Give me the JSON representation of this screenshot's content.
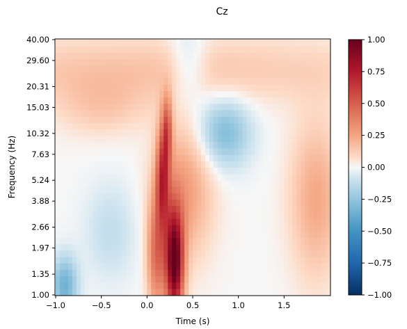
{
  "chart_data": {
    "type": "heatmap",
    "title": "Cz",
    "xlabel": "Time (s)",
    "ylabel": "Frequency (Hz)",
    "x_range": [
      -1.0,
      2.0
    ],
    "x_ticks": [
      -1.0,
      -0.5,
      0.0,
      0.5,
      1.0,
      1.5
    ],
    "x_tick_labels": [
      "−1.0",
      "−0.5",
      "0.0",
      "0.5",
      "1.0",
      "1.5"
    ],
    "y_scale": "log",
    "y_range": [
      1.0,
      40.0
    ],
    "y_ticks": [
      1.0,
      1.35,
      1.97,
      2.66,
      3.88,
      5.24,
      7.63,
      10.32,
      15.03,
      20.31,
      29.6,
      40.0
    ],
    "y_tick_labels": [
      "1.00",
      "1.35",
      "1.97",
      "2.66",
      "3.88",
      "5.24",
      "7.63",
      "10.32",
      "15.03",
      "20.31",
      "29.60",
      "40.00"
    ],
    "colorbar": {
      "colormap": "RdBu_r",
      "vmin": -1.0,
      "vmax": 1.0,
      "ticks": [
        -1.0,
        -0.75,
        -0.5,
        -0.25,
        0.0,
        0.25,
        0.5,
        0.75,
        1.0
      ],
      "tick_labels": [
        "−1.00",
        "−0.75",
        "−0.50",
        "−0.25",
        "0.00",
        "0.25",
        "0.50",
        "0.75",
        "1.00"
      ]
    },
    "features": [
      {
        "t0": 0.3,
        "sigma_t": 0.07,
        "f0": 1.6,
        "sigma_logf": 0.55,
        "amp": 1.0
      },
      {
        "t0": 0.1,
        "sigma_t": 0.07,
        "f0": 1.8,
        "sigma_logf": 0.6,
        "amp": 0.42
      },
      {
        "t0": 0.17,
        "sigma_t": 0.05,
        "f0": 5.5,
        "sigma_logf": 0.5,
        "amp": 0.55
      },
      {
        "t0": 0.22,
        "sigma_t": 0.04,
        "f0": 11.0,
        "sigma_logf": 0.35,
        "amp": 0.42
      },
      {
        "t0": 0.4,
        "sigma_t": 0.22,
        "f0": 4.5,
        "sigma_logf": 0.7,
        "amp": 0.28
      },
      {
        "t0": 1.85,
        "sigma_t": 0.2,
        "f0": 4.0,
        "sigma_logf": 0.8,
        "amp": 0.24
      },
      {
        "t0": 0.0,
        "sigma_t": 2.0,
        "f0": 26.0,
        "sigma_logf": 0.35,
        "amp": 0.15
      },
      {
        "t0": -0.5,
        "sigma_t": 0.35,
        "f0": 15.0,
        "sigma_logf": 0.3,
        "amp": 0.12
      },
      {
        "t0": -0.9,
        "sigma_t": 0.1,
        "f0": 1.15,
        "sigma_logf": 0.3,
        "amp": -0.35
      },
      {
        "t0": -0.4,
        "sigma_t": 0.2,
        "f0": 2.5,
        "sigma_logf": 0.5,
        "amp": -0.12
      },
      {
        "t0": 0.85,
        "sigma_t": 0.2,
        "f0": 10.5,
        "sigma_logf": 0.35,
        "amp": -0.3
      },
      {
        "t0": 0.45,
        "sigma_t": 0.15,
        "f0": 27.0,
        "sigma_logf": 0.4,
        "amp": -0.16
      }
    ]
  }
}
